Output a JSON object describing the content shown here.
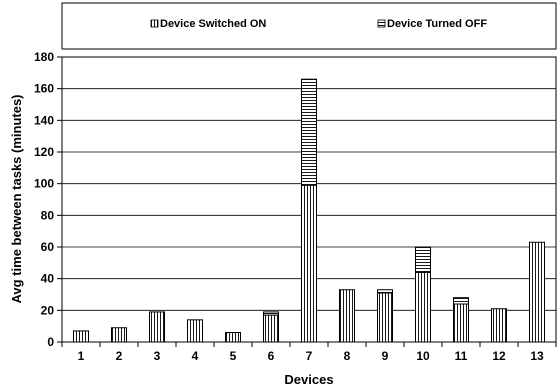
{
  "chart_data": {
    "type": "bar",
    "stacked": true,
    "title": "",
    "xlabel": "Devices",
    "ylabel": "Avg time between tasks (minutes)",
    "ylim": [
      0,
      180
    ],
    "yticks": [
      0,
      20,
      40,
      60,
      80,
      100,
      120,
      140,
      160,
      180
    ],
    "grid": true,
    "legend_position": "top",
    "categories": [
      "1",
      "2",
      "3",
      "4",
      "5",
      "6",
      "7",
      "8",
      "9",
      "10",
      "11",
      "12",
      "13"
    ],
    "series": [
      {
        "name": "Device Switched ON",
        "pattern": "vertical-stripes",
        "values": [
          7,
          9,
          19,
          14,
          6,
          17,
          99,
          33,
          31,
          44,
          24,
          21,
          63
        ]
      },
      {
        "name": "Device Turned OFF",
        "pattern": "horizontal-stripes",
        "values": [
          0,
          0,
          0,
          0,
          0,
          2,
          67,
          0,
          2,
          16,
          4,
          0,
          0
        ]
      }
    ],
    "colors": {
      "stroke": "#000000",
      "fill": "#ffffff"
    }
  }
}
